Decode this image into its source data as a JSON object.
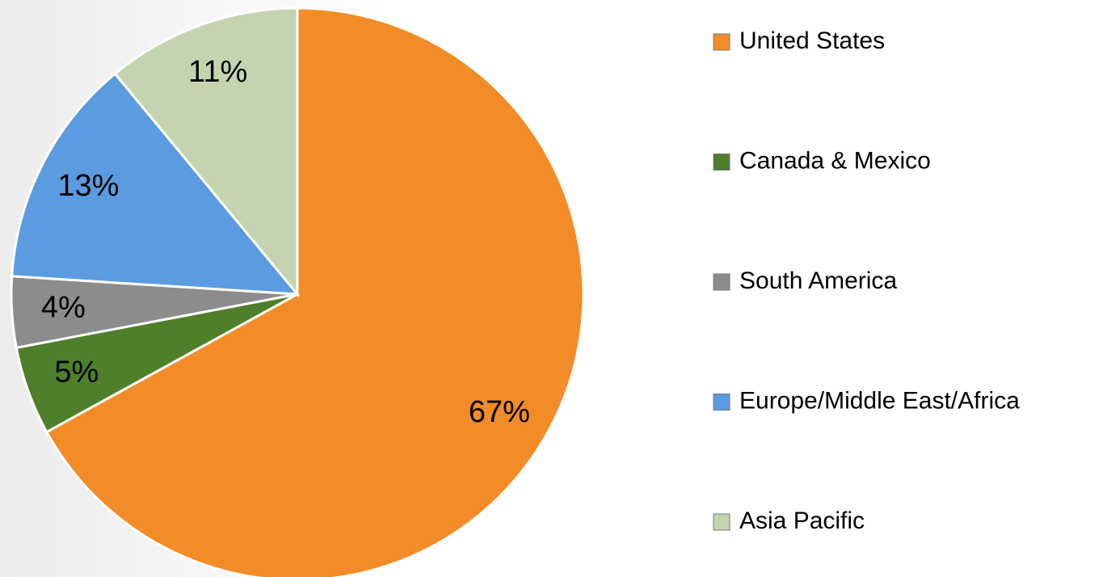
{
  "chart_data": {
    "type": "pie",
    "categories": [
      "United States",
      "Canada & Mexico",
      "South America",
      "Europe/Middle East/Africa",
      "Asia Pacific"
    ],
    "values": [
      67,
      5,
      4,
      13,
      11
    ],
    "value_labels": [
      "67%",
      "5%",
      "4%",
      "13%",
      "11%"
    ],
    "colors": [
      "#f28c28",
      "#4e7f2a",
      "#8c8c8c",
      "#5b9be0",
      "#c4d4b0"
    ],
    "legend": "right"
  }
}
